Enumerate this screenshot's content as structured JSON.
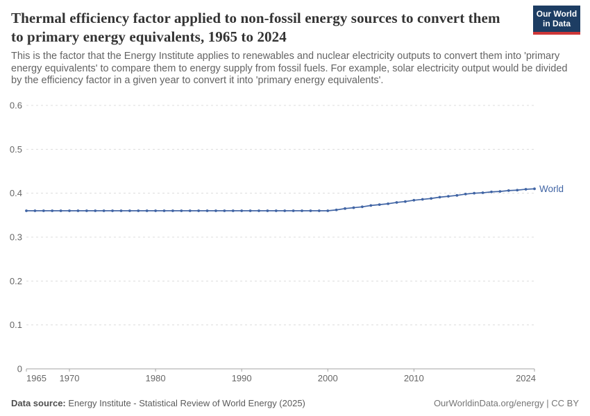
{
  "header": {
    "title": "Thermal efficiency factor applied to non-fossil energy sources to convert them to primary energy equivalents, 1965 to 2024",
    "subtitle": "This is the factor that the Energy Institute applies to renewables and nuclear electricity outputs to convert them into 'primary energy equivalents' to compare them to energy supply from fossil fuels. For example, solar electricity output would be divided by the efficiency factor in a given year to convert it into 'primary energy equivalents'.",
    "logo": {
      "line1": "Our World",
      "line2": "in Data",
      "bg_color": "#1d3d63",
      "accent_color": "#ce3637"
    }
  },
  "chart_data": {
    "type": "line",
    "title": "Thermal efficiency factor applied to non-fossil energy sources to convert them to primary energy equivalents",
    "xlabel": "",
    "ylabel": "",
    "ylim": [
      0,
      0.6
    ],
    "yticks": [
      0,
      0.1,
      0.2,
      0.3,
      0.4,
      0.5,
      0.6
    ],
    "xticks": [
      1965,
      1970,
      1980,
      1990,
      2000,
      2010,
      2024
    ],
    "grid": "horizontal-dashed",
    "legend_position": "end-of-line-label",
    "colors": {
      "line": "#4064a4",
      "grid": "#dcdcdc",
      "axis": "#a3a3a3",
      "tick_text": "#666666"
    },
    "x": [
      1965,
      1966,
      1967,
      1968,
      1969,
      1970,
      1971,
      1972,
      1973,
      1974,
      1975,
      1976,
      1977,
      1978,
      1979,
      1980,
      1981,
      1982,
      1983,
      1984,
      1985,
      1986,
      1987,
      1988,
      1989,
      1990,
      1991,
      1992,
      1993,
      1994,
      1995,
      1996,
      1997,
      1998,
      1999,
      2000,
      2001,
      2002,
      2003,
      2004,
      2005,
      2006,
      2007,
      2008,
      2009,
      2010,
      2011,
      2012,
      2013,
      2014,
      2015,
      2016,
      2017,
      2018,
      2019,
      2020,
      2021,
      2022,
      2023,
      2024
    ],
    "series": [
      {
        "name": "World",
        "color": "#4064a4",
        "values": [
          0.36,
          0.36,
          0.36,
          0.36,
          0.36,
          0.36,
          0.36,
          0.36,
          0.36,
          0.36,
          0.36,
          0.36,
          0.36,
          0.36,
          0.36,
          0.36,
          0.36,
          0.36,
          0.36,
          0.36,
          0.36,
          0.36,
          0.36,
          0.36,
          0.36,
          0.36,
          0.36,
          0.36,
          0.36,
          0.36,
          0.36,
          0.36,
          0.36,
          0.36,
          0.36,
          0.36,
          0.362,
          0.365,
          0.367,
          0.369,
          0.372,
          0.374,
          0.376,
          0.379,
          0.381,
          0.384,
          0.386,
          0.388,
          0.391,
          0.393,
          0.395,
          0.398,
          0.4,
          0.401,
          0.403,
          0.404,
          0.406,
          0.407,
          0.409,
          0.41
        ]
      }
    ]
  },
  "footer": {
    "datasource_label": "Data source:",
    "datasource_value": " Energy Institute - Statistical Review of World Energy (2025)",
    "attribution": "OurWorldinData.org/energy | CC BY"
  }
}
